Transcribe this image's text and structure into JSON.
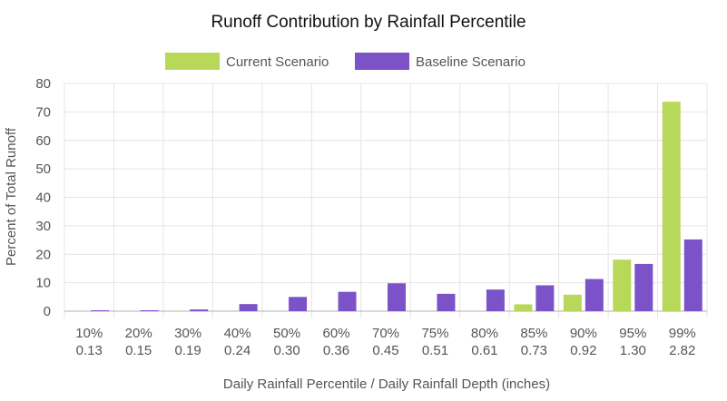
{
  "chart_data": {
    "type": "bar",
    "title": "Runoff Contribution by Rainfall Percentile",
    "xlabel": "Daily Rainfall Percentile  / Daily Rainfall Depth (inches)",
    "ylabel": "Percent of Total Runoff",
    "ylim": [
      0,
      80
    ],
    "yticks": [
      "0",
      "10",
      "20",
      "30",
      "40",
      "50",
      "60",
      "70",
      "80"
    ],
    "grid": true,
    "legend_position": "top",
    "categories": [
      {
        "percentile": "10%",
        "depth": "0.13"
      },
      {
        "percentile": "20%",
        "depth": "0.15"
      },
      {
        "percentile": "30%",
        "depth": "0.19"
      },
      {
        "percentile": "40%",
        "depth": "0.24"
      },
      {
        "percentile": "50%",
        "depth": "0.30"
      },
      {
        "percentile": "60%",
        "depth": "0.36"
      },
      {
        "percentile": "70%",
        "depth": "0.45"
      },
      {
        "percentile": "75%",
        "depth": "0.51"
      },
      {
        "percentile": "80%",
        "depth": "0.61"
      },
      {
        "percentile": "85%",
        "depth": "0.73"
      },
      {
        "percentile": "90%",
        "depth": "0.92"
      },
      {
        "percentile": "95%",
        "depth": "1.30"
      },
      {
        "percentile": "99%",
        "depth": "2.82"
      }
    ],
    "series": [
      {
        "name": "Current Scenario",
        "color": "#b8d85a",
        "values": [
          0,
          0,
          0,
          0,
          0,
          0,
          0,
          0,
          0,
          2.4,
          5.8,
          18.1,
          73.6
        ]
      },
      {
        "name": "Baseline Scenario",
        "color": "#7c52c8",
        "values": [
          0.2,
          0.3,
          0.6,
          2.5,
          5.0,
          6.8,
          9.8,
          6.1,
          7.6,
          9.1,
          11.3,
          16.6,
          25.2
        ]
      }
    ]
  }
}
